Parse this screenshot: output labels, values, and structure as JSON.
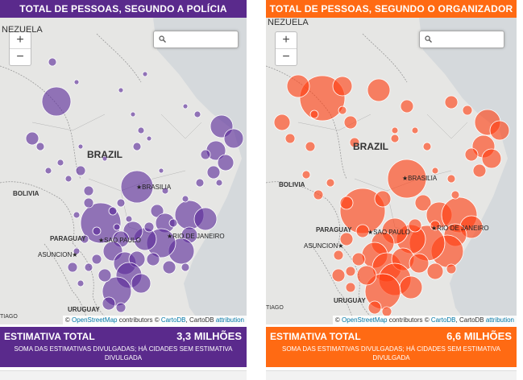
{
  "colors": {
    "police": "#5a2a8c",
    "organizer": "#ff5a1f",
    "police_bubble": "#5a2a9a",
    "organizer_bubble": "#ff3d10"
  },
  "panels": [
    {
      "id": "police",
      "title": "TOTAL DE PESSOAS, SEGUNDO A POLÍCIA",
      "color": "#5a2a8c",
      "footer_label": "ESTIMATIVA TOTAL",
      "footer_value": "3,3 MILHÕES",
      "footer_note": "SOMA DAS ESTIMATIVAS DIVULGADAS; HÁ CIDADES SEM ESTIMATIVA DIVULGADA"
    },
    {
      "id": "organizer",
      "title": "TOTAL DE PESSOAS, SEGUNDO O ORGANIZADOR",
      "color": "#ff6a13",
      "footer_label": "ESTIMATIVA TOTAL",
      "footer_value": "6,6 MILHÕES",
      "footer_note": "SOMA DAS ESTIMATIVAS DIVULGADAS; HÁ CIDADES SEM ESTIMATIVA DIVULGADA"
    }
  ],
  "map": {
    "zoom_in": "+",
    "zoom_out": "−",
    "search_icon": "magnifier-icon",
    "search_value": "",
    "labels_police": {
      "country_top": "NEZUELA",
      "country": "BRAZIL",
      "bolivia": "BOLIVIA",
      "paraguay": "PARAGUAY",
      "uruguay": "URUGUAY",
      "tiago": "TIAGO"
    },
    "labels_org": {
      "country_top": "NEZUELA",
      "country": "BRAZIL",
      "bolivia": "BOLIVIA",
      "paraguay": "PARAGUAY",
      "uruguay": "URUGUAY",
      "tiago": "TIAGO"
    },
    "cities": {
      "brasilia": "BRASILIA",
      "sao_paulo": "SAO PAULO",
      "rio": "RIO DE JANEIRO",
      "asuncion": "ASUNCION"
    },
    "attribution": {
      "prefix": "© ",
      "osm": "OpenStreetMap",
      "mid": " contributors © ",
      "cartodb": "CartoDB",
      "mid2": ", CartoDB ",
      "attribution": "attribution"
    }
  }
}
